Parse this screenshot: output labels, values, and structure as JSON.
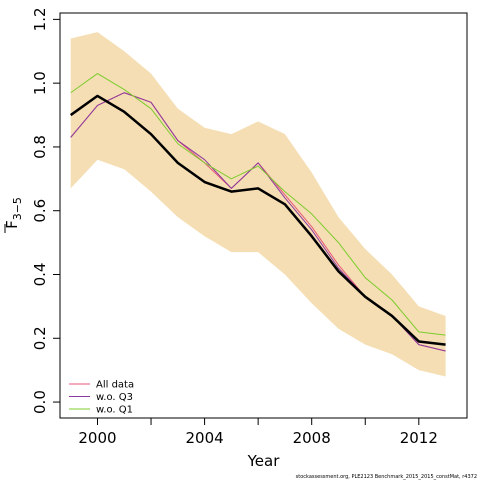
{
  "chart_data": {
    "type": "line",
    "xlabel": "Year",
    "ylabel_main": "F",
    "ylabel_sub": "3−5",
    "xlim": [
      1998.6,
      2013.8
    ],
    "ylim": [
      -0.05,
      1.22
    ],
    "x_ticks": [
      {
        "value": 2000,
        "label": "2000"
      },
      {
        "value": 2004,
        "label": "2004"
      },
      {
        "value": 2008,
        "label": "2008"
      },
      {
        "value": 2012,
        "label": "2012"
      }
    ],
    "x_minor_ticks": [
      2002,
      2006,
      2010
    ],
    "y_ticks": [
      {
        "value": 0.0,
        "label": "0.0"
      },
      {
        "value": 0.2,
        "label": "0.2"
      },
      {
        "value": 0.4,
        "label": "0.4"
      },
      {
        "value": 0.6,
        "label": "0.6"
      },
      {
        "value": 0.8,
        "label": "0.8"
      },
      {
        "value": 1.0,
        "label": "1.0"
      },
      {
        "value": 1.2,
        "label": "1.2"
      }
    ],
    "x": [
      1999,
      2000,
      2001,
      2002,
      2003,
      2004,
      2005,
      2006,
      2007,
      2008,
      2009,
      2010,
      2011,
      2012,
      2013
    ],
    "band": {
      "color": "#f5deb3",
      "upper": [
        1.14,
        1.16,
        1.1,
        1.03,
        0.92,
        0.86,
        0.84,
        0.88,
        0.84,
        0.72,
        0.58,
        0.48,
        0.4,
        0.3,
        0.27
      ],
      "lower": [
        0.67,
        0.76,
        0.73,
        0.66,
        0.58,
        0.52,
        0.47,
        0.47,
        0.4,
        0.31,
        0.23,
        0.18,
        0.15,
        0.1,
        0.08
      ]
    },
    "series": [
      {
        "name": "All data",
        "color": "#e8577a",
        "width": 1,
        "values": [
          0.83,
          0.93,
          0.97,
          0.94,
          0.82,
          0.75,
          0.67,
          0.75,
          0.65,
          0.55,
          0.43,
          0.33,
          0.27,
          0.18,
          0.16
        ]
      },
      {
        "name": "w.o. Q3",
        "color": "#8b3a9e",
        "width": 1,
        "values": [
          0.83,
          0.93,
          0.97,
          0.94,
          0.82,
          0.76,
          0.67,
          0.75,
          0.64,
          0.54,
          0.42,
          0.33,
          0.27,
          0.18,
          0.16
        ]
      },
      {
        "name": "w.o. Q1",
        "color": "#7ccc2e",
        "width": 1,
        "values": [
          0.97,
          1.03,
          0.98,
          0.92,
          0.81,
          0.75,
          0.7,
          0.74,
          0.66,
          0.59,
          0.5,
          0.39,
          0.32,
          0.22,
          0.21
        ]
      },
      {
        "color": "#000000",
        "width": 2.5,
        "values": [
          0.9,
          0.96,
          0.91,
          0.84,
          0.75,
          0.69,
          0.66,
          0.67,
          0.62,
          0.52,
          0.41,
          0.33,
          0.27,
          0.19,
          0.18
        ]
      }
    ],
    "legend": [
      {
        "label": "All data",
        "color": "#e8577a"
      },
      {
        "label": "w.o. Q3",
        "color": "#8b3a9e"
      },
      {
        "label": "w.o. Q1",
        "color": "#7ccc2e"
      }
    ],
    "legend_position": "bottom-left",
    "grid": false,
    "footer": "stockassessment.org, PLE2123   Benchmark_2015_2015_constMat, r4372"
  }
}
